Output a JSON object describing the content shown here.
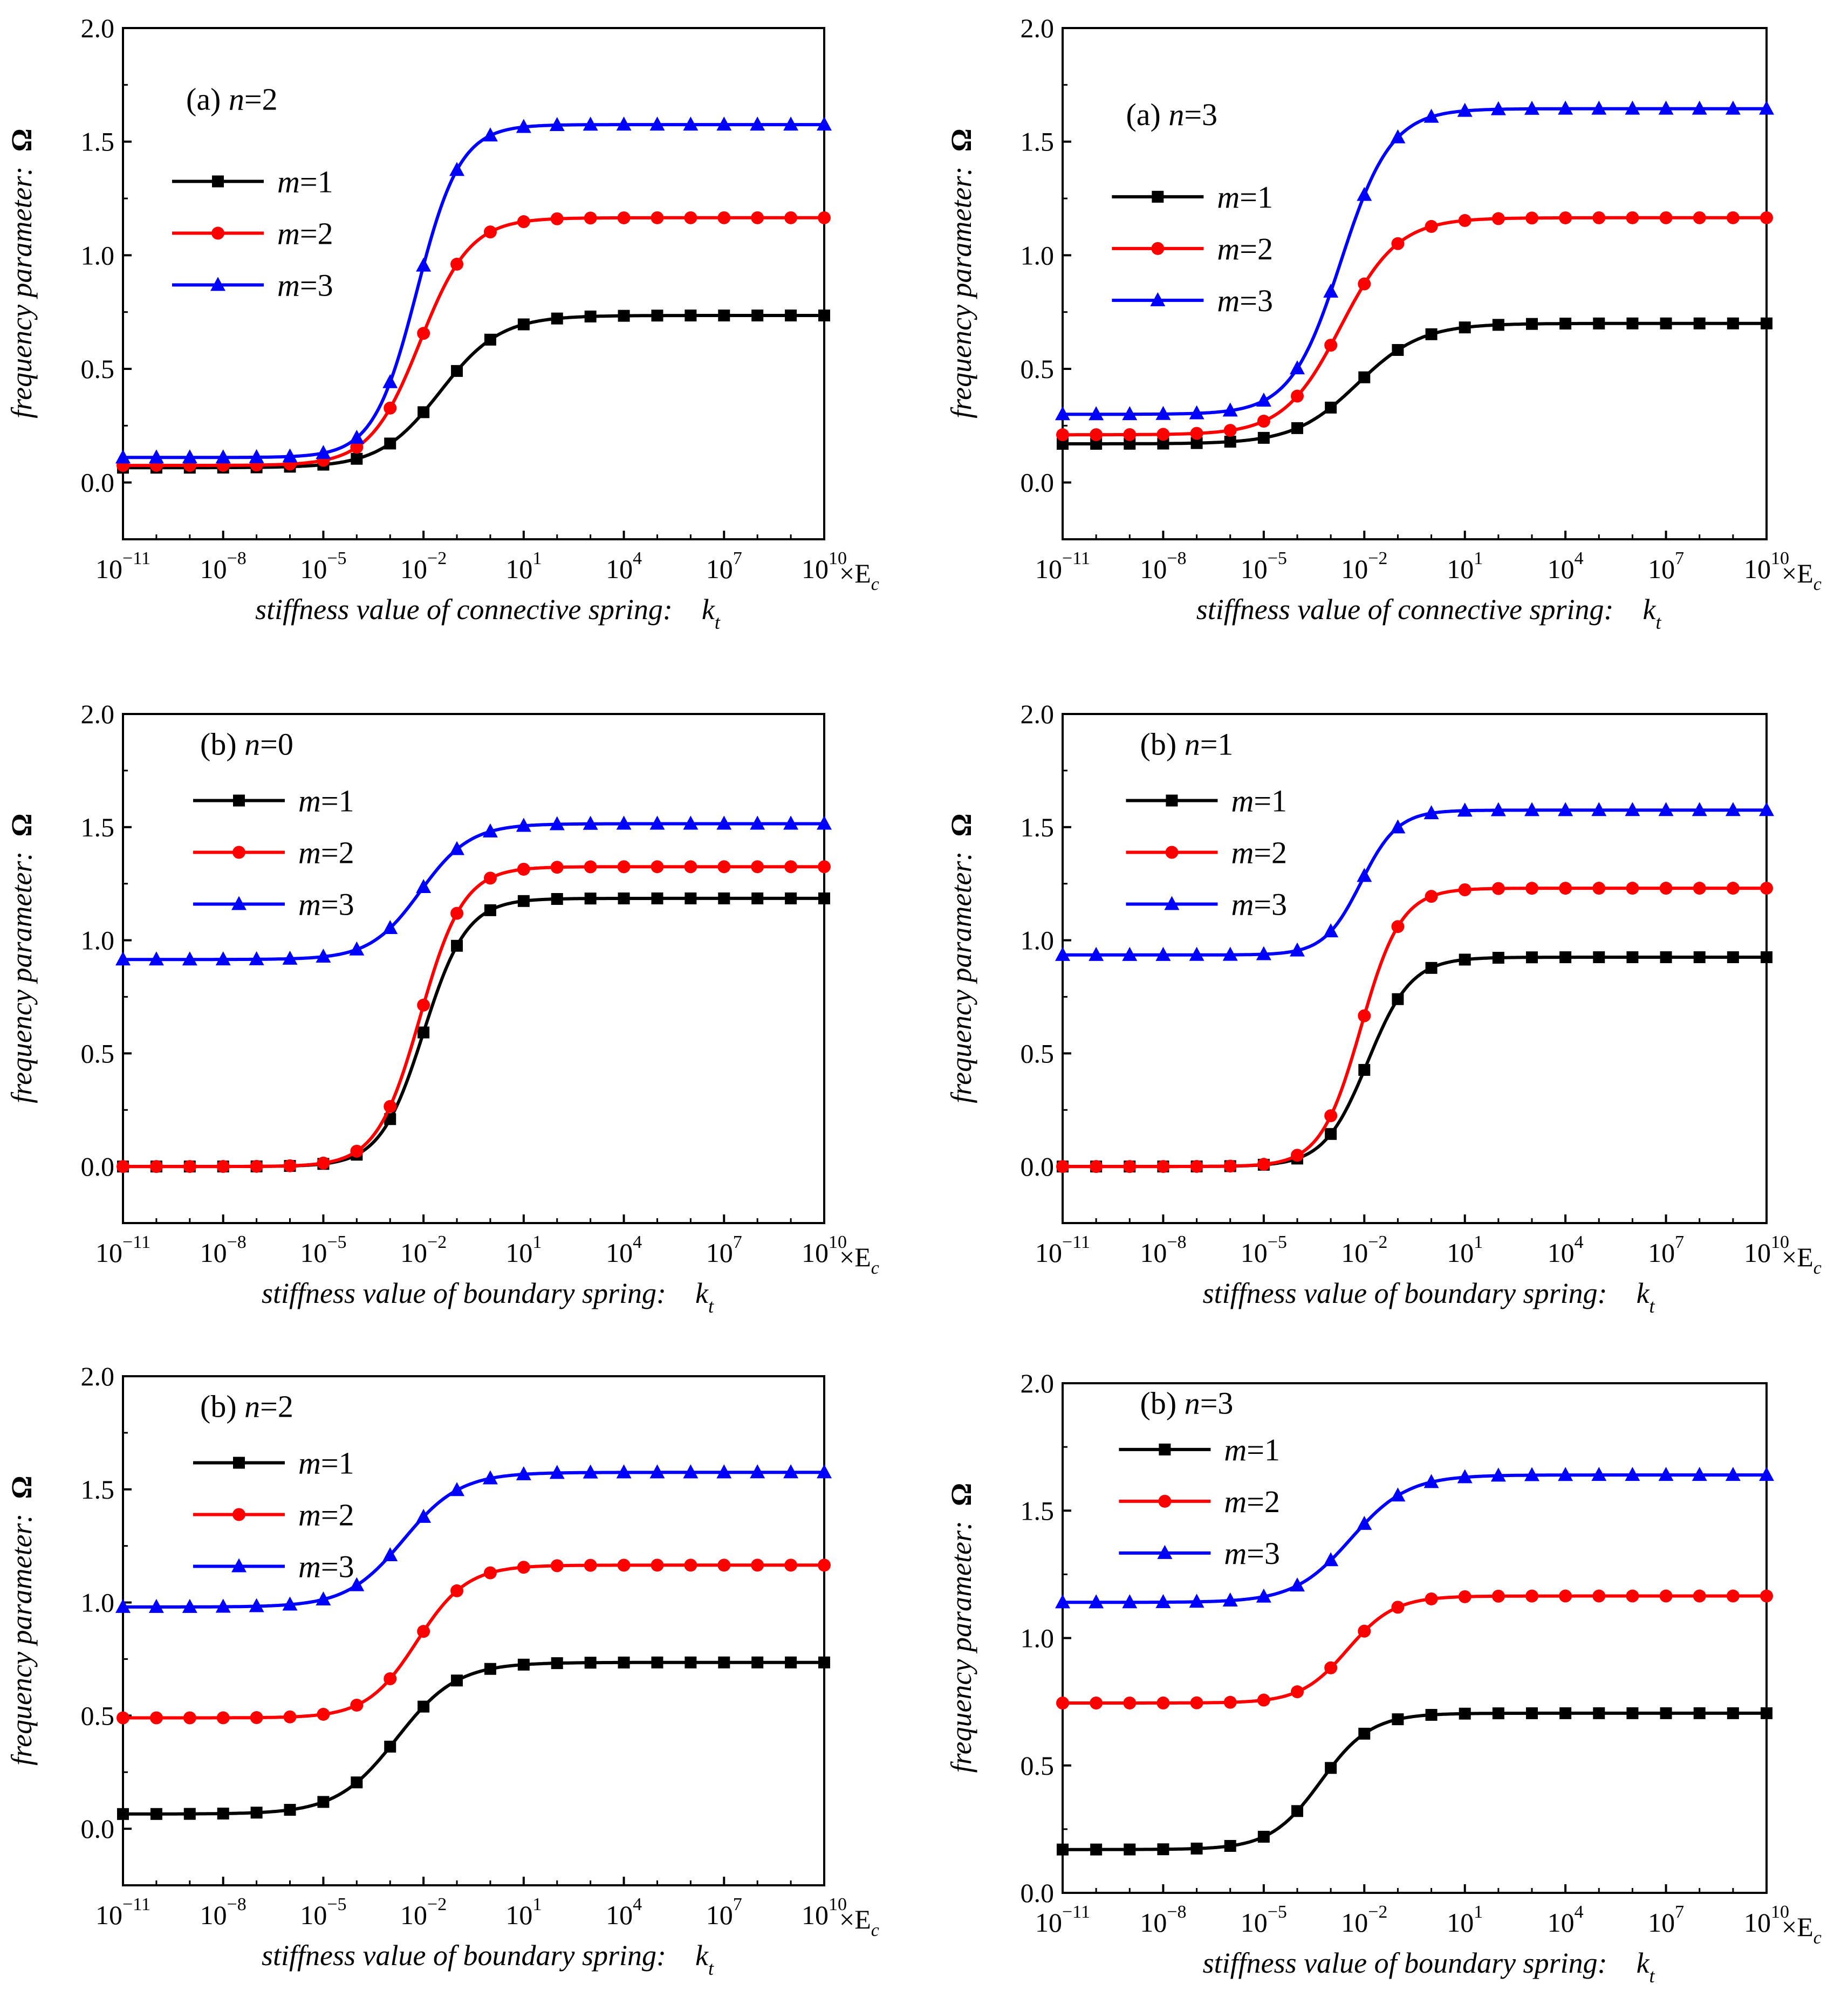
{
  "figure": {
    "description_panels": 6
  },
  "chart_data": [
    {
      "type": "line",
      "panel_label": "(a) n=2",
      "panel_prefix": "(a) ",
      "panel_var": "n",
      "panel_value": "=2",
      "xlabel": "stiffness value of connective spring:",
      "xlabel_symbol": "k",
      "xlabel_sub": "t",
      "ylabel": "frequency parameter:",
      "ylabel_symbol": "Ω",
      "x_unit": "×E",
      "x_unit_sub": "c",
      "x_scale": "log",
      "xlim": [
        -11,
        10
      ],
      "ylim": [
        -0.25,
        2.0
      ],
      "yticks": [
        "0.0",
        "0.5",
        "1.0",
        "1.5",
        "2.0"
      ],
      "xticks": [
        {
          "base": "10",
          "exp": "−11"
        },
        {
          "base": "10",
          "exp": "−8"
        },
        {
          "base": "10",
          "exp": "−5"
        },
        {
          "base": "10",
          "exp": "−2"
        },
        {
          "base": "10",
          "exp": "1"
        },
        {
          "base": "10",
          "exp": "4"
        },
        {
          "base": "10",
          "exp": "7"
        },
        {
          "base": "10",
          "exp": "10"
        }
      ],
      "legend_position": "middle-left",
      "series": [
        {
          "name": "m=1",
          "var": "m",
          "value": "=1",
          "color": "#000000",
          "marker": "square",
          "low": 0.065,
          "high": 0.735,
          "center": -1.5,
          "width": 0.9
        },
        {
          "name": "m=2",
          "var": "m",
          "value": "=2",
          "color": "#ff0000",
          "marker": "circle",
          "low": 0.075,
          "high": 1.165,
          "center": -2.1,
          "width": 0.75
        },
        {
          "name": "m=3",
          "var": "m",
          "value": "=3",
          "color": "#0000ff",
          "marker": "triangle",
          "low": 0.11,
          "high": 1.575,
          "center": -2.2,
          "width": 0.65
        }
      ]
    },
    {
      "type": "line",
      "panel_label": "(a) n=3",
      "panel_prefix": "(a) ",
      "panel_var": "n",
      "panel_value": "=3",
      "xlabel": "stiffness value of connective spring:",
      "xlabel_symbol": "k",
      "xlabel_sub": "t",
      "ylabel": "frequency parameter:",
      "ylabel_symbol": "Ω",
      "x_unit": "×E",
      "x_unit_sub": "c",
      "x_scale": "log",
      "xlim": [
        -11,
        10
      ],
      "ylim": [
        -0.25,
        2.0
      ],
      "yticks": [
        "0.0",
        "0.5",
        "1.0",
        "1.5",
        "2.0"
      ],
      "xticks": [
        {
          "base": "10",
          "exp": "−11"
        },
        {
          "base": "10",
          "exp": "−8"
        },
        {
          "base": "10",
          "exp": "−5"
        },
        {
          "base": "10",
          "exp": "−2"
        },
        {
          "base": "10",
          "exp": "1"
        },
        {
          "base": "10",
          "exp": "4"
        },
        {
          "base": "10",
          "exp": "7"
        },
        {
          "base": "10",
          "exp": "10"
        }
      ],
      "legend_position": "middle-left",
      "series": [
        {
          "name": "m=1",
          "var": "m",
          "value": "=1",
          "color": "#000000",
          "marker": "square",
          "low": 0.17,
          "high": 0.7,
          "center": -2.2,
          "width": 0.95
        },
        {
          "name": "m=2",
          "var": "m",
          "value": "=2",
          "color": "#ff0000",
          "marker": "circle",
          "low": 0.21,
          "high": 1.165,
          "center": -2.7,
          "width": 0.85
        },
        {
          "name": "m=3",
          "var": "m",
          "value": "=3",
          "color": "#0000ff",
          "marker": "triangle",
          "low": 0.3,
          "high": 1.645,
          "center": -2.7,
          "width": 0.75
        }
      ]
    },
    {
      "type": "line",
      "panel_label": "(b) n=0",
      "panel_prefix": "(b) ",
      "panel_var": "n",
      "panel_value": "=0",
      "xlabel": "stiffness value of boundary spring:",
      "xlabel_symbol": "k",
      "xlabel_sub": "t",
      "ylabel": "frequency parameter:",
      "ylabel_symbol": "Ω",
      "x_unit": "×E",
      "x_unit_sub": "c",
      "x_scale": "log",
      "xlim": [
        -11,
        10
      ],
      "ylim": [
        -0.25,
        2.0
      ],
      "yticks": [
        "0.0",
        "0.5",
        "1.0",
        "1.5",
        "2.0"
      ],
      "xticks": [
        {
          "base": "10",
          "exp": "−11"
        },
        {
          "base": "10",
          "exp": "−8"
        },
        {
          "base": "10",
          "exp": "−5"
        },
        {
          "base": "10",
          "exp": "−2"
        },
        {
          "base": "10",
          "exp": "1"
        },
        {
          "base": "10",
          "exp": "4"
        },
        {
          "base": "10",
          "exp": "7"
        },
        {
          "base": "10",
          "exp": "10"
        }
      ],
      "legend_position": "top-left",
      "series": [
        {
          "name": "m=1",
          "var": "m",
          "value": "=1",
          "color": "#000000",
          "marker": "square",
          "low": 0.0,
          "high": 1.185,
          "center": -2.0,
          "width": 0.65
        },
        {
          "name": "m=2",
          "var": "m",
          "value": "=2",
          "color": "#ff0000",
          "marker": "circle",
          "low": 0.0,
          "high": 1.325,
          "center": -2.1,
          "width": 0.65
        },
        {
          "name": "m=3",
          "var": "m",
          "value": "=3",
          "color": "#0000ff",
          "marker": "triangle",
          "low": 0.915,
          "high": 1.515,
          "center": -2.1,
          "width": 0.75
        }
      ]
    },
    {
      "type": "line",
      "panel_label": "(b) n=1",
      "panel_prefix": "(b) ",
      "panel_var": "n",
      "panel_value": "=1",
      "xlabel": "stiffness value of boundary spring:",
      "xlabel_symbol": "k",
      "xlabel_sub": "t",
      "ylabel": "frequency parameter:",
      "ylabel_symbol": "Ω",
      "x_unit": "×E",
      "x_unit_sub": "c",
      "x_scale": "log",
      "xlim": [
        -11,
        10
      ],
      "ylim": [
        -0.25,
        2.0
      ],
      "yticks": [
        "0.0",
        "0.5",
        "1.0",
        "1.5",
        "2.0"
      ],
      "xticks": [
        {
          "base": "10",
          "exp": "−11"
        },
        {
          "base": "10",
          "exp": "−8"
        },
        {
          "base": "10",
          "exp": "−5"
        },
        {
          "base": "10",
          "exp": "−2"
        },
        {
          "base": "10",
          "exp": "1"
        },
        {
          "base": "10",
          "exp": "4"
        },
        {
          "base": "10",
          "exp": "7"
        },
        {
          "base": "10",
          "exp": "10"
        }
      ],
      "legend_position": "top-left",
      "series": [
        {
          "name": "m=1",
          "var": "m",
          "value": "=1",
          "color": "#000000",
          "marker": "square",
          "low": 0.0,
          "high": 0.925,
          "center": -1.9,
          "width": 0.65
        },
        {
          "name": "m=2",
          "var": "m",
          "value": "=2",
          "color": "#ff0000",
          "marker": "circle",
          "low": 0.0,
          "high": 1.23,
          "center": -2.1,
          "width": 0.6
        },
        {
          "name": "m=3",
          "var": "m",
          "value": "=3",
          "color": "#0000ff",
          "marker": "triangle",
          "low": 0.935,
          "high": 1.575,
          "center": -2.1,
          "width": 0.55
        }
      ]
    },
    {
      "type": "line",
      "panel_label": "(b) n=2",
      "panel_prefix": "(b) ",
      "panel_var": "n",
      "panel_value": "=2",
      "xlabel": "stiffness value of boundary spring:",
      "xlabel_symbol": "k",
      "xlabel_sub": "t",
      "ylabel": "frequency parameter:",
      "ylabel_symbol": "Ω",
      "x_unit": "×E",
      "x_unit_sub": "c",
      "x_scale": "log",
      "xlim": [
        -11,
        10
      ],
      "ylim": [
        -0.25,
        2.0
      ],
      "yticks": [
        "0.0",
        "0.5",
        "1.0",
        "1.5",
        "2.0"
      ],
      "xticks": [
        {
          "base": "10",
          "exp": "−11"
        },
        {
          "base": "10",
          "exp": "−8"
        },
        {
          "base": "10",
          "exp": "−5"
        },
        {
          "base": "10",
          "exp": "−2"
        },
        {
          "base": "10",
          "exp": "1"
        },
        {
          "base": "10",
          "exp": "4"
        },
        {
          "base": "10",
          "exp": "7"
        },
        {
          "base": "10",
          "exp": "10"
        }
      ],
      "legend_position": "top-left",
      "series": [
        {
          "name": "m=1",
          "var": "m",
          "value": "=1",
          "color": "#000000",
          "marker": "square",
          "low": 0.065,
          "high": 0.735,
          "center": -2.8,
          "width": 0.9
        },
        {
          "name": "m=2",
          "var": "m",
          "value": "=2",
          "color": "#ff0000",
          "marker": "circle",
          "low": 0.49,
          "high": 1.165,
          "center": -2.2,
          "width": 0.75
        },
        {
          "name": "m=3",
          "var": "m",
          "value": "=3",
          "color": "#0000ff",
          "marker": "triangle",
          "low": 0.98,
          "high": 1.575,
          "center": -2.6,
          "width": 0.85
        }
      ]
    },
    {
      "type": "line",
      "panel_label": "(b) n=3",
      "panel_prefix": "(b) ",
      "panel_var": "n",
      "panel_value": "=3",
      "xlabel": "stiffness value of boundary spring:",
      "xlabel_symbol": "k",
      "xlabel_sub": "t",
      "ylabel": "frequency parameter:",
      "ylabel_symbol": "Ω",
      "x_unit": "×E",
      "x_unit_sub": "c",
      "x_scale": "log",
      "xlim": [
        -11,
        10
      ],
      "ylim": [
        0.0,
        2.0
      ],
      "yticks": [
        "0.0",
        "0.5",
        "1.0",
        "1.5",
        "2.0"
      ],
      "xticks": [
        {
          "base": "10",
          "exp": "−11"
        },
        {
          "base": "10",
          "exp": "−8"
        },
        {
          "base": "10",
          "exp": "−5"
        },
        {
          "base": "10",
          "exp": "−2"
        },
        {
          "base": "10",
          "exp": "1"
        },
        {
          "base": "10",
          "exp": "4"
        },
        {
          "base": "10",
          "exp": "7"
        },
        {
          "base": "10",
          "exp": "10"
        }
      ],
      "legend_position": "top-left",
      "series": [
        {
          "name": "m=1",
          "var": "m",
          "value": "=1",
          "color": "#000000",
          "marker": "square",
          "low": 0.17,
          "high": 0.705,
          "center": -3.3,
          "width": 0.75
        },
        {
          "name": "m=2",
          "var": "m",
          "value": "=2",
          "color": "#ff0000",
          "marker": "circle",
          "low": 0.745,
          "high": 1.165,
          "center": -2.5,
          "width": 0.7
        },
        {
          "name": "m=3",
          "var": "m",
          "value": "=3",
          "color": "#0000ff",
          "marker": "triangle",
          "low": 1.14,
          "high": 1.64,
          "center": -2.4,
          "width": 0.85
        }
      ]
    }
  ]
}
